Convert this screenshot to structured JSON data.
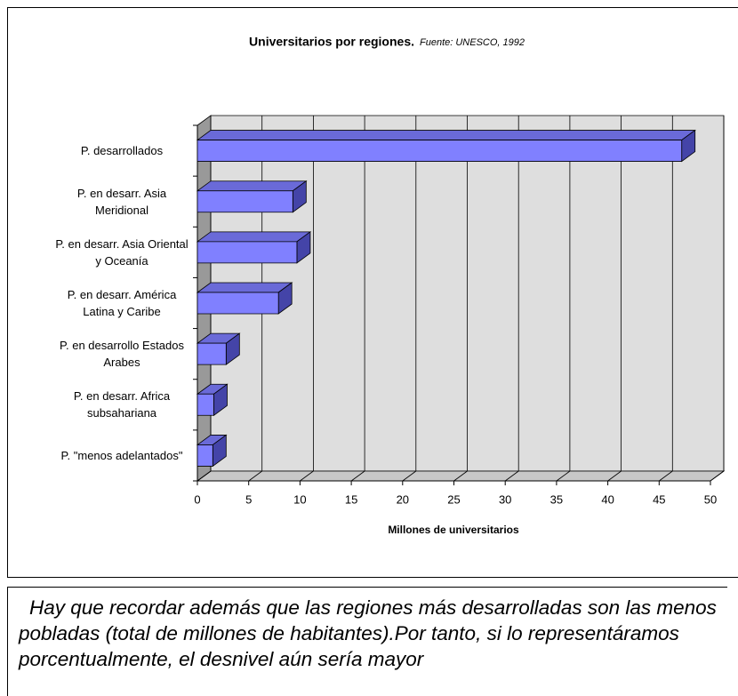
{
  "chart_data": {
    "type": "bar3d_horizontal",
    "title": "Universitarios por regiones.",
    "subtitle": "Fuente: UNESCO, 1992",
    "x_label": "Millones de universitarios",
    "categories": [
      "P. desarrollados",
      "P. en desarr. Asia Meridional",
      "P. en desarr. Asia Oriental y Oceanía",
      "P. en desarr. América Latina y Caribe",
      "P. en desarrollo Estados Arabes",
      "P. en desarr. Africa subsahariana",
      "P.  \"menos adelantados\""
    ],
    "values": [
      47.2,
      9.3,
      9.7,
      7.9,
      2.8,
      1.6,
      1.5
    ],
    "color": "#8080ff",
    "xlim": [
      0,
      50
    ],
    "xticks": [
      0,
      5,
      10,
      15,
      20,
      25,
      30,
      35,
      40,
      45,
      50
    ],
    "grid": true
  },
  "note": "Hay que recordar además que las regiones más desarrolladas son las menos pobladas (total de millones de habitantes).Por tanto, si lo representáramos porcentualmente, el desnivel aún sería mayor"
}
